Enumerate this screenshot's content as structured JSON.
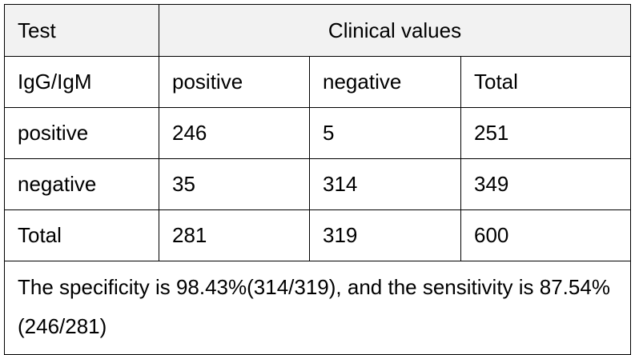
{
  "table": {
    "header": {
      "test": "Test",
      "clinical": "Clinical values"
    },
    "subheader": [
      "IgG/IgM",
      "positive",
      "negative",
      "Total"
    ],
    "rows": [
      [
        "positive",
        "246",
        "5",
        "251"
      ],
      [
        "negative",
        "35",
        "314",
        "349"
      ],
      [
        "Total",
        "281",
        "319",
        "600"
      ]
    ],
    "note": "The specificity is 98.43%(314/319), and the sensitivity is 87.54%(246/281)"
  }
}
